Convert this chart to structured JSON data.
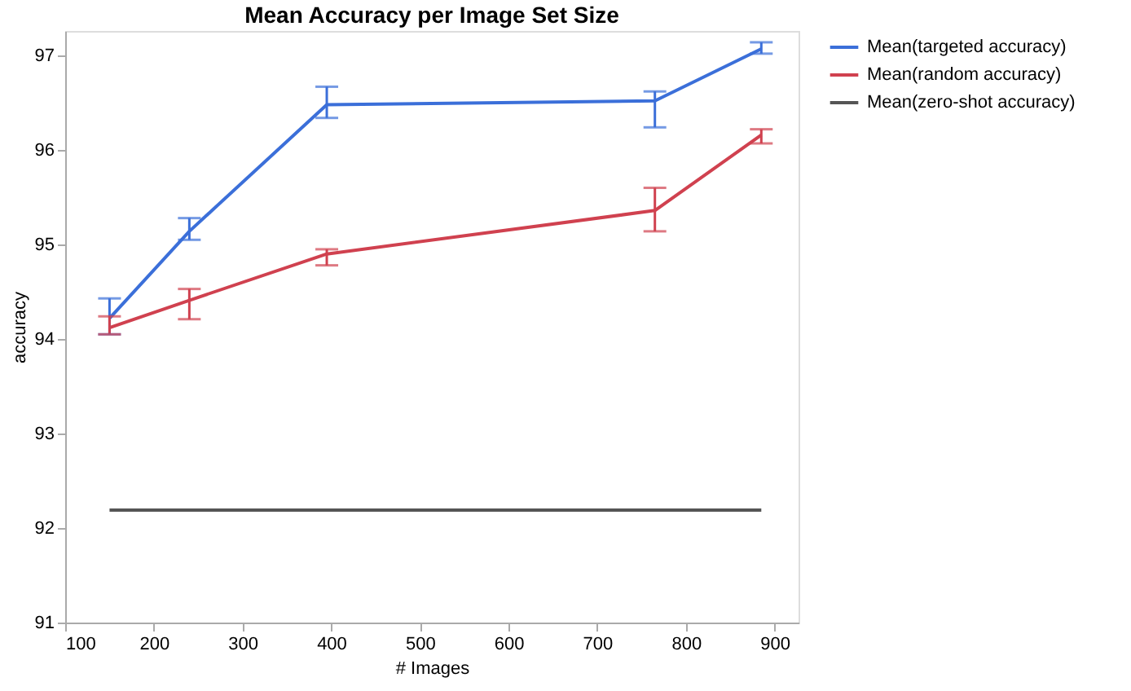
{
  "chart_data": {
    "type": "line",
    "title": "Mean Accuracy per Image Set Size",
    "xlabel": "# Images",
    "ylabel": "accuracy",
    "x": [
      150,
      240,
      395,
      765,
      885
    ],
    "series": [
      {
        "name": "Mean(targeted accuracy)",
        "color": "#3b6fd9",
        "values": [
          94.22,
          95.14,
          96.48,
          96.52,
          97.07
        ],
        "errors": [
          [
            94.05,
            94.43
          ],
          [
            95.05,
            95.28
          ],
          [
            96.34,
            96.67
          ],
          [
            96.24,
            96.62
          ],
          [
            97.02,
            97.14
          ]
        ]
      },
      {
        "name": "Mean(random accuracy)",
        "color": "#d0414f",
        "values": [
          94.12,
          94.41,
          94.9,
          95.36,
          96.16
        ],
        "errors": [
          [
            94.05,
            94.24
          ],
          [
            94.21,
            94.53
          ],
          [
            94.78,
            94.95
          ],
          [
            95.14,
            95.6
          ],
          [
            96.07,
            96.22
          ]
        ]
      },
      {
        "name": "Mean(zero-shot accuracy)",
        "color": "#555555",
        "values": [
          92.19,
          92.19,
          92.19,
          92.19,
          92.19
        ]
      }
    ],
    "xlim": [
      100,
      927
    ],
    "xticks": [
      100,
      200,
      300,
      400,
      500,
      600,
      700,
      800,
      900
    ],
    "ylim": [
      91,
      97.26
    ],
    "yticks": [
      91,
      92,
      93,
      94,
      95,
      96,
      97
    ],
    "grid": false,
    "legend": "top right",
    "marker": "none",
    "line_style": "solid"
  }
}
